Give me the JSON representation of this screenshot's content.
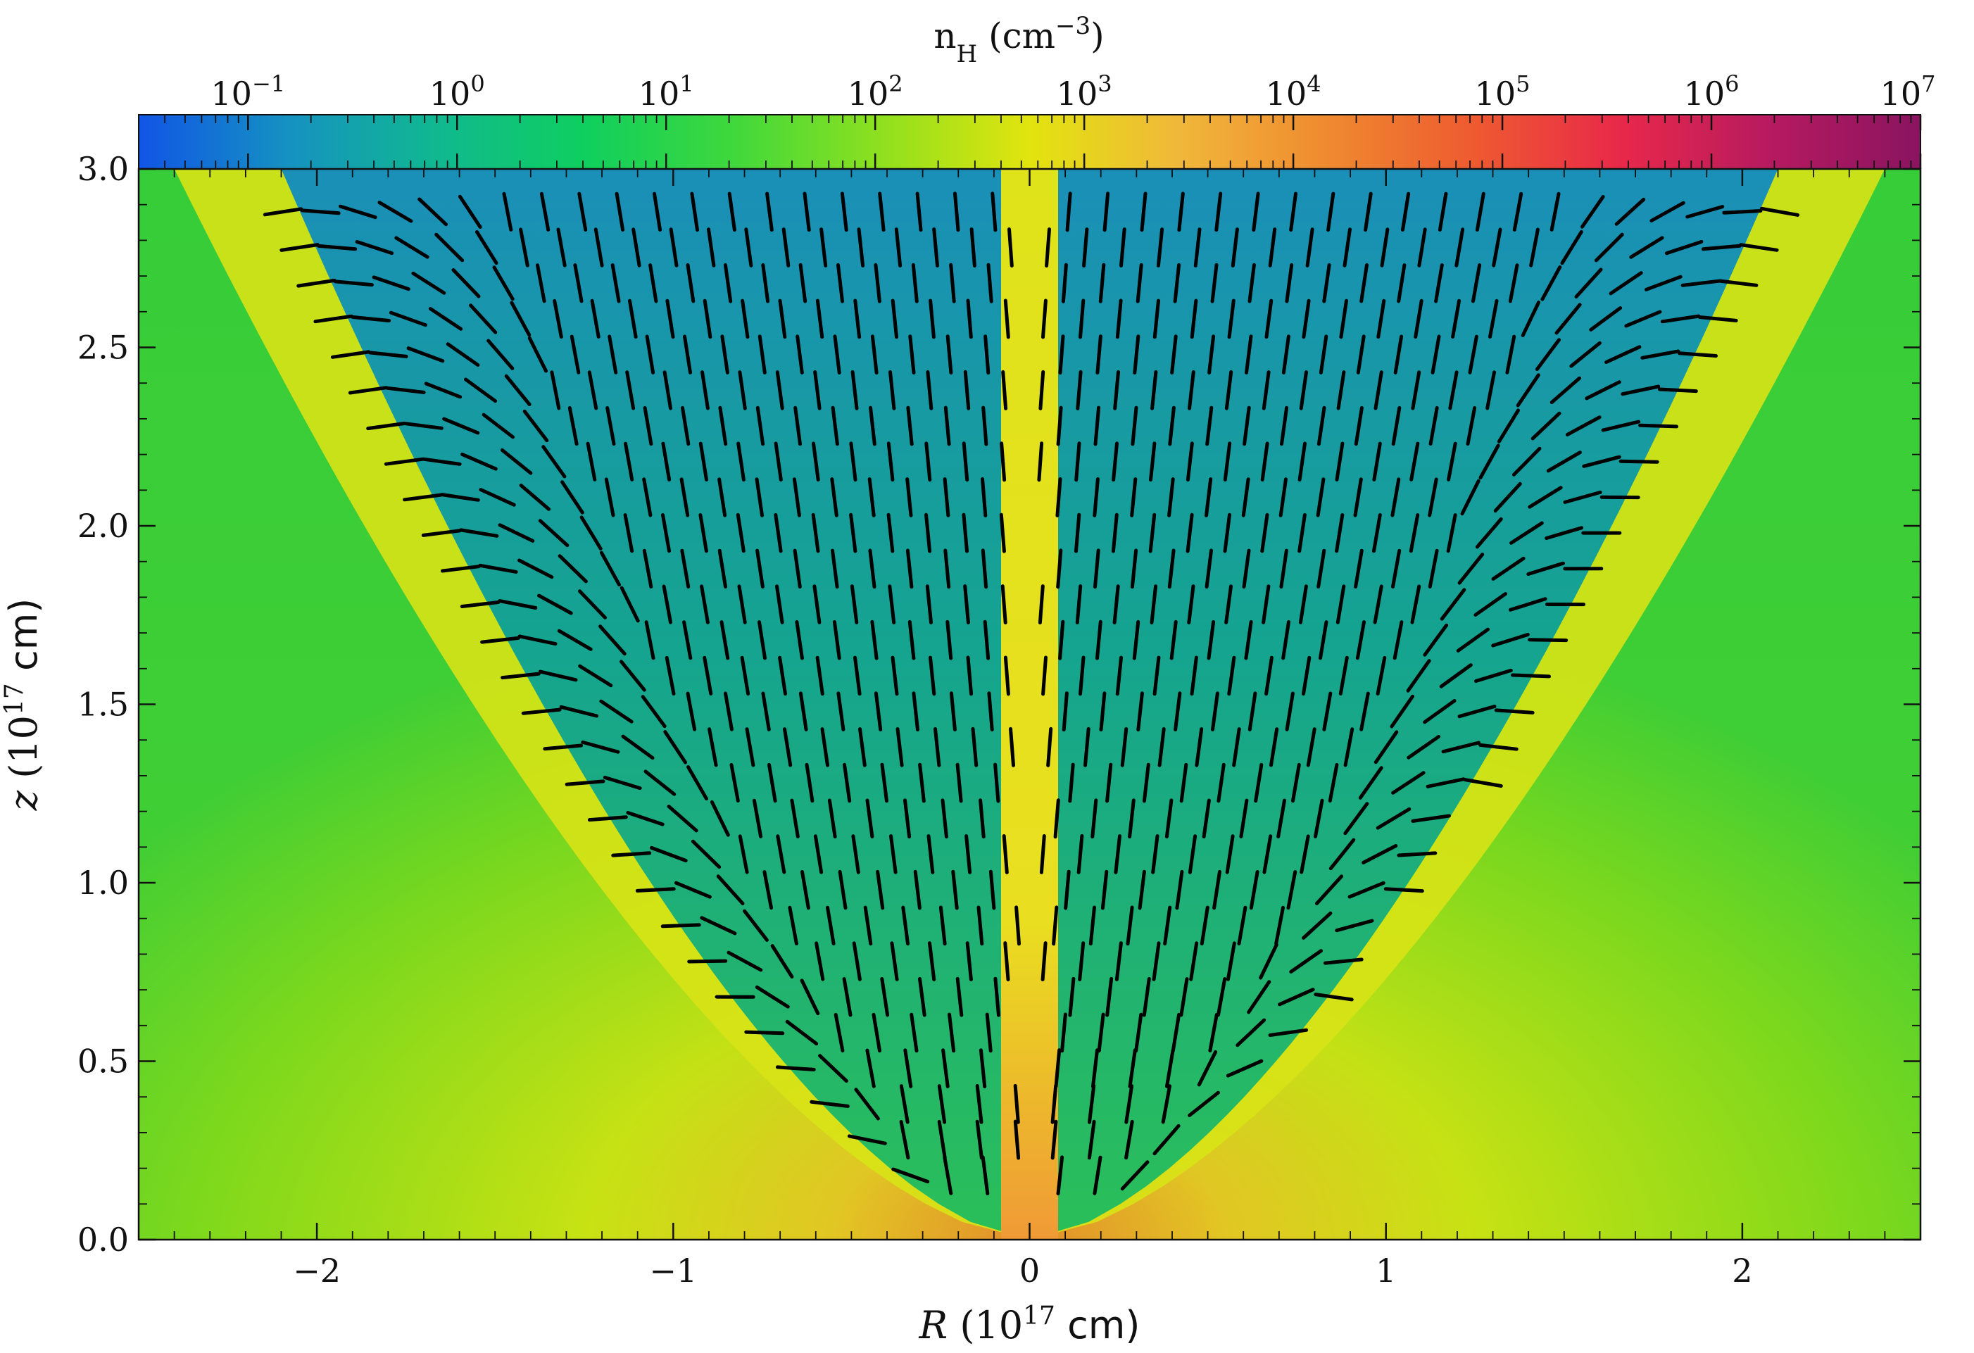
{
  "chart_data": {
    "type": "heatmap",
    "title": "",
    "quantity": "density map with polarization segments overlaid",
    "colorbar": {
      "label_main": "n",
      "label_sub": "H",
      "label_unit_open": " (cm",
      "label_unit_sup": "−3",
      "label_unit_close": ")",
      "scale": "log",
      "range": [
        0.03,
        10000000
      ],
      "placement": "top",
      "tick_bases": [
        "10",
        "10",
        "10",
        "10",
        "10",
        "10",
        "10",
        "10",
        "10"
      ],
      "tick_exps": [
        "−1",
        "0",
        "1",
        "2",
        "3",
        "4",
        "5",
        "6",
        "7"
      ],
      "tick_values": [
        0.1,
        1,
        10,
        100,
        1000,
        10000,
        100000,
        1000000,
        10000000
      ],
      "colors": [
        "#1155e6",
        "#1591c2",
        "#10b890",
        "#0fcf5e",
        "#3fd83c",
        "#8fe01e",
        "#e2e40e",
        "#f0b83a",
        "#ef8a30",
        "#ee5a30",
        "#e8284a",
        "#b51a60",
        "#8a1460"
      ]
    },
    "x_axis": {
      "label_var": "R",
      "label_open": " (10",
      "label_sup": "17",
      "label_unit": " cm)",
      "range": [
        -2.5,
        2.5
      ],
      "ticks": [
        -2,
        -1,
        0,
        1,
        2
      ],
      "tick_labels": [
        "−2",
        "−1",
        "0",
        "1",
        "2"
      ]
    },
    "y_axis": {
      "label_var": "z",
      "label_open": " (10",
      "label_sup": "17",
      "label_unit": " cm)",
      "range": [
        0.0,
        3.0
      ],
      "ticks": [
        0.0,
        0.5,
        1.0,
        1.5,
        2.0,
        2.5,
        3.0
      ],
      "tick_labels": [
        "0.0",
        "0.5",
        "1.0",
        "1.5",
        "2.0",
        "2.5",
        "3.0"
      ]
    },
    "regions": {
      "background_color": "#63d62c",
      "outflow_cavity_color": "#14a88c",
      "cavity_opening_half_width_at_top": 2.15,
      "polar_jet_color": "#e8e520"
    },
    "vector_segment_color": "#000000"
  }
}
